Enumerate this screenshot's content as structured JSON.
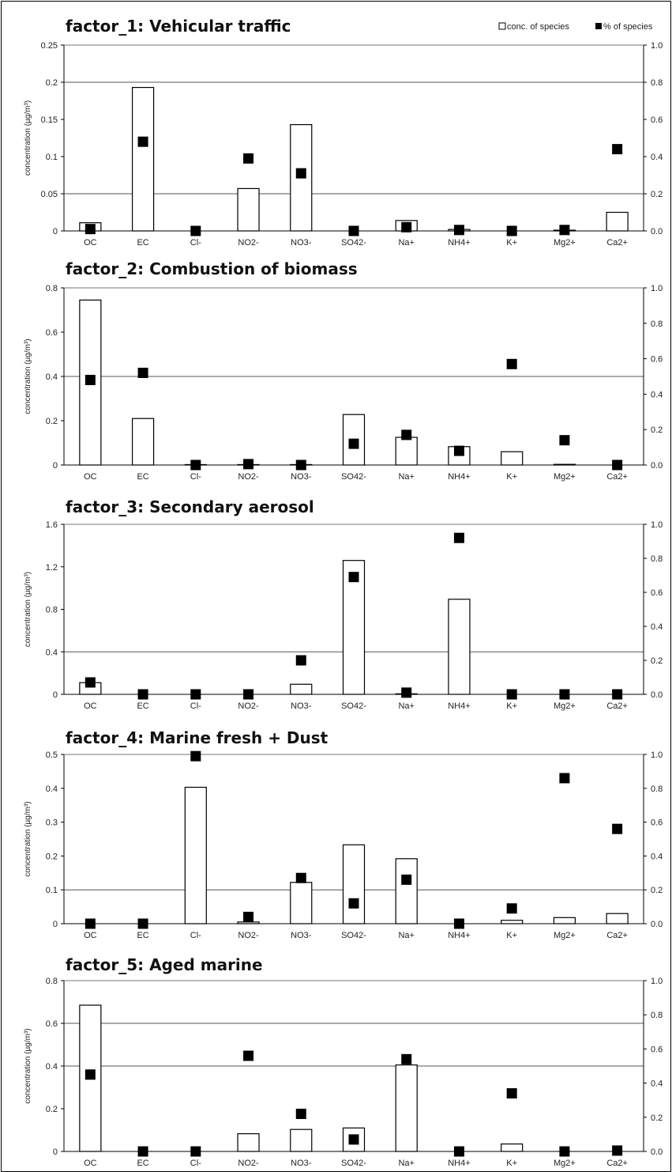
{
  "legend": {
    "conc_label": "conc. of species",
    "pct_label": "% of species"
  },
  "chart_data": [
    {
      "type": "bar",
      "title": "factor_1: Vehicular traffic",
      "ylabel": "concentration (µg/m³)",
      "ylim": [
        0,
        0.25
      ],
      "y_ticks": [
        "0",
        "0.05",
        "0.1",
        "0.15",
        "0.2",
        "0.25"
      ],
      "y_tick_values": [
        0,
        0.05,
        0.1,
        0.15,
        0.2,
        0.25
      ],
      "y2lim": [
        0,
        1.0
      ],
      "y2_ticks": [
        "0.0",
        "0.2",
        "0.4",
        "0.6",
        "0.8",
        "1.0"
      ],
      "y2_tick_values": [
        0,
        0.2,
        0.4,
        0.6,
        0.8,
        1.0
      ],
      "gridlines": [
        0.05,
        0.2
      ],
      "categories": [
        "OC",
        "EC",
        "Cl-",
        "NO2-",
        "NO3-",
        "SO42-",
        "Na+",
        "NH4+",
        "K+",
        "Mg2+",
        "Ca2+"
      ],
      "series": [
        {
          "name": "conc. of species",
          "kind": "bar",
          "values": [
            0.011,
            0.193,
            0.0,
            0.057,
            0.143,
            0.0,
            0.014,
            0.002,
            0.0,
            0.001,
            0.025
          ]
        },
        {
          "name": "% of species",
          "kind": "marker",
          "axis": "right",
          "values": [
            0.01,
            0.48,
            0.0,
            0.39,
            0.31,
            0.0,
            0.02,
            0.005,
            0.0,
            0.005,
            0.44
          ]
        }
      ]
    },
    {
      "type": "bar",
      "title": "factor_2: Combustion of biomass",
      "ylabel": "concentration (µg/m³)",
      "ylim": [
        0,
        0.8
      ],
      "y_ticks": [
        "0",
        "0.2",
        "0.4",
        "0.6",
        "0.8"
      ],
      "y_tick_values": [
        0,
        0.2,
        0.4,
        0.6,
        0.8
      ],
      "y2lim": [
        0,
        1.0
      ],
      "y2_ticks": [
        "0.0",
        "0.2",
        "0.4",
        "0.6",
        "0.8",
        "1.0"
      ],
      "y2_tick_values": [
        0,
        0.2,
        0.4,
        0.6,
        0.8,
        1.0
      ],
      "gridlines": [
        0.4
      ],
      "categories": [
        "OC",
        "EC",
        "Cl-",
        "NO2-",
        "NO3-",
        "SO42-",
        "Na+",
        "NH4+",
        "K+",
        "Mg2+",
        "Ca2+"
      ],
      "series": [
        {
          "name": "conc. of species",
          "kind": "bar",
          "values": [
            0.745,
            0.21,
            0.002,
            0.002,
            0.002,
            0.228,
            0.125,
            0.083,
            0.06,
            0.003,
            0.0
          ]
        },
        {
          "name": "% of species",
          "kind": "marker",
          "axis": "right",
          "values": [
            0.48,
            0.52,
            0.0,
            0.005,
            0.0,
            0.12,
            0.17,
            0.08,
            0.57,
            0.14,
            0.0
          ]
        }
      ]
    },
    {
      "type": "bar",
      "title": "factor_3: Secondary aerosol",
      "ylabel": "concentration (µg/m³)",
      "ylim": [
        0,
        1.6
      ],
      "y_ticks": [
        "0",
        "0.4",
        "0.8",
        "1.2",
        "1.6"
      ],
      "y_tick_values": [
        0,
        0.4,
        0.8,
        1.2,
        1.6
      ],
      "y2lim": [
        0,
        1.0
      ],
      "y2_ticks": [
        "0.0",
        "0.2",
        "0.4",
        "0.6",
        "0.8",
        "1.0"
      ],
      "y2_tick_values": [
        0,
        0.2,
        0.4,
        0.6,
        0.8,
        1.0
      ],
      "gridlines": [
        0.4
      ],
      "categories": [
        "OC",
        "EC",
        "Cl-",
        "NO2-",
        "NO3-",
        "SO42-",
        "Na+",
        "NH4+",
        "K+",
        "Mg2+",
        "Ca2+"
      ],
      "series": [
        {
          "name": "conc. of species",
          "kind": "bar",
          "values": [
            0.11,
            0.0,
            0.0,
            0.0,
            0.095,
            1.26,
            0.005,
            0.895,
            0.0,
            0.0,
            0.0
          ]
        },
        {
          "name": "% of species",
          "kind": "marker",
          "axis": "right",
          "values": [
            0.07,
            0.0,
            0.0,
            0.0,
            0.2,
            0.69,
            0.01,
            0.92,
            0.0,
            0.0,
            0.0
          ]
        }
      ]
    },
    {
      "type": "bar",
      "title": "factor_4: Marine fresh + Dust",
      "ylabel": "concentration (µg/m³)",
      "ylim": [
        0,
        0.5
      ],
      "y_ticks": [
        "0",
        "0.1",
        "0.2",
        "0.3",
        "0.4",
        "0.5"
      ],
      "y_tick_values": [
        0,
        0.1,
        0.2,
        0.3,
        0.4,
        0.5
      ],
      "y2lim": [
        0,
        1.0
      ],
      "y2_ticks": [
        "0.0",
        "0.2",
        "0.4",
        "0.6",
        "0.8",
        "1.0"
      ],
      "y2_tick_values": [
        0,
        0.2,
        0.4,
        0.6,
        0.8,
        1.0
      ],
      "gridlines": [
        0.1
      ],
      "categories": [
        "OC",
        "EC",
        "Cl-",
        "NO2-",
        "NO3-",
        "SO42-",
        "Na+",
        "NH4+",
        "K+",
        "Mg2+",
        "Ca2+"
      ],
      "series": [
        {
          "name": "conc. of species",
          "kind": "bar",
          "values": [
            0.0,
            0.0,
            0.403,
            0.005,
            0.122,
            0.233,
            0.192,
            0.0,
            0.01,
            0.018,
            0.03
          ]
        },
        {
          "name": "% of species",
          "kind": "marker",
          "axis": "right",
          "values": [
            0.0,
            0.0,
            0.99,
            0.04,
            0.27,
            0.12,
            0.26,
            0.0,
            0.09,
            0.86,
            0.56
          ]
        }
      ]
    },
    {
      "type": "bar",
      "title": "factor_5: Aged marine",
      "ylabel": "concentration (µg/m³)",
      "ylim": [
        0,
        0.8
      ],
      "y_ticks": [
        "0",
        "0.2",
        "0.4",
        "0.6",
        "0.8"
      ],
      "y_tick_values": [
        0,
        0.2,
        0.4,
        0.6,
        0.8
      ],
      "y2lim": [
        0,
        1.0
      ],
      "y2_ticks": [
        "0.0",
        "0.2",
        "0.4",
        "0.6",
        "0.8",
        "1.0"
      ],
      "y2_tick_values": [
        0,
        0.2,
        0.4,
        0.6,
        0.8,
        1.0
      ],
      "gridlines": [
        0.4,
        0.6
      ],
      "categories": [
        "OC",
        "EC",
        "Cl-",
        "NO2-",
        "NO3-",
        "SO42-",
        "Na+",
        "NH4+",
        "K+",
        "Mg2+",
        "Ca2+"
      ],
      "series": [
        {
          "name": "conc. of species",
          "kind": "bar",
          "values": [
            0.685,
            0.0,
            0.0,
            0.083,
            0.103,
            0.11,
            0.405,
            0.0,
            0.035,
            0.0,
            0.0
          ]
        },
        {
          "name": "% of species",
          "kind": "marker",
          "axis": "right",
          "values": [
            0.45,
            0.0,
            0.0,
            0.56,
            0.22,
            0.07,
            0.54,
            0.0,
            0.34,
            0.0,
            0.005
          ]
        }
      ]
    }
  ]
}
